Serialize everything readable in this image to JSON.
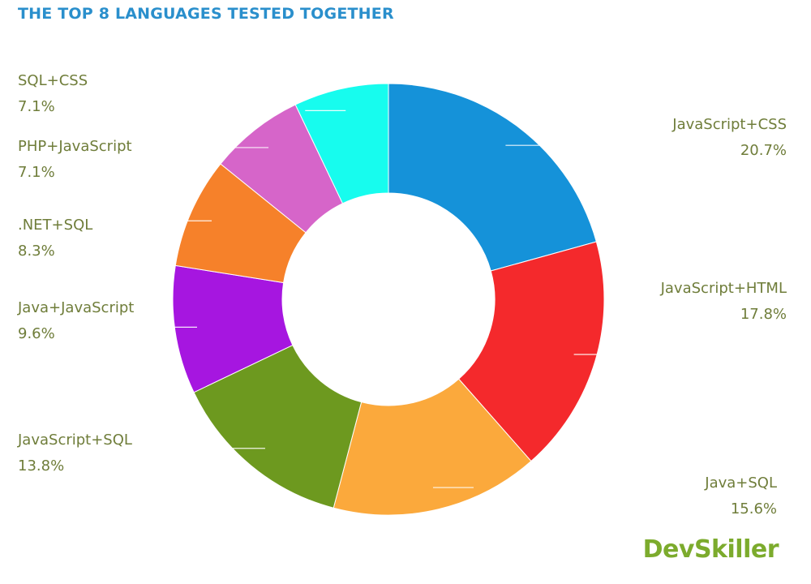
{
  "chart_data": {
    "type": "pie",
    "title": "THE TOP 8 LANGUAGES TESTED TOGETHER",
    "categories": [
      "JavaScript+CSS",
      "JavaScript+HTML",
      "Java+SQL",
      "JavaScript+SQL",
      "Java+JavaScript",
      ".NET+SQL",
      "PHP+JavaScript",
      "SQL+CSS"
    ],
    "values": [
      20.7,
      17.8,
      15.6,
      13.8,
      9.6,
      8.3,
      7.1,
      7.1
    ],
    "value_labels": [
      "20.7%",
      "17.8%",
      "15.6%",
      "13.8%",
      "9.6%",
      "8.3%",
      "7.1%",
      "7.1%"
    ],
    "colors": [
      "#1592d9",
      "#f4292c",
      "#fba93c",
      "#6d991f",
      "#a616e0",
      "#f6812a",
      "#d665c9",
      "#17fcee"
    ],
    "donut": true,
    "legend": "none",
    "labels_position": "outside"
  },
  "brand": {
    "logo_text": "DevSkiller"
  }
}
